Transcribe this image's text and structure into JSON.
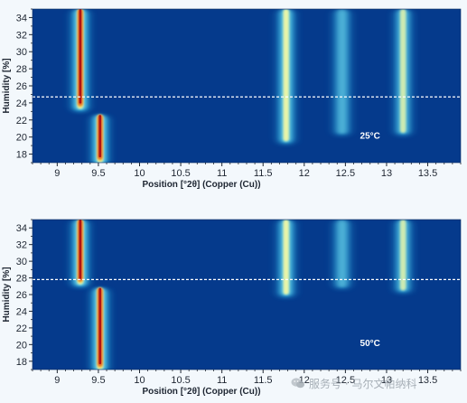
{
  "colors": {
    "background": "#053a8c",
    "colormap": [
      "#0a2f86",
      "#1466c8",
      "#2bb3e6",
      "#7ee3f0",
      "#e8f5a8",
      "#f5b43a",
      "#e0551c",
      "#b01414"
    ],
    "threshold_line": "#ffffff"
  },
  "watermark": {
    "text": "服务号 · 马尔文帕纳科",
    "icon": "wechat-icon"
  },
  "chart_data": [
    {
      "type": "heatmap",
      "annotation": "25°C",
      "xlabel": "Position [°2θ] (Copper (Cu))",
      "ylabel": "Humidity [%]",
      "xlim": [
        8.7,
        13.9
      ],
      "ylim": [
        17,
        35
      ],
      "x_ticks": [
        "9",
        "9.5",
        "10",
        "10.5",
        "11",
        "11.5",
        "12",
        "12.5",
        "13",
        "13.5"
      ],
      "y_ticks": [
        "18",
        "20",
        "22",
        "24",
        "26",
        "28",
        "30",
        "32",
        "34"
      ],
      "threshold_humidity": 24.7,
      "peaks": [
        {
          "position": 9.28,
          "humidity_from": 23.3,
          "humidity_to": 35,
          "intensity": 1.0
        },
        {
          "position": 9.52,
          "humidity_from": 17,
          "humidity_to": 22.6,
          "intensity": 1.0
        },
        {
          "position": 11.78,
          "humidity_from": 19.5,
          "humidity_to": 35,
          "intensity": 0.72
        },
        {
          "position": 12.46,
          "humidity_from": 20.5,
          "humidity_to": 35,
          "intensity": 0.32
        },
        {
          "position": 13.2,
          "humidity_from": 20.5,
          "humidity_to": 35,
          "intensity": 0.52
        }
      ]
    },
    {
      "type": "heatmap",
      "annotation": "50°C",
      "xlabel": "Position [°2θ] (Copper (Cu))",
      "ylabel": "Humidity [%]",
      "xlim": [
        8.7,
        13.9
      ],
      "ylim": [
        17,
        35
      ],
      "x_ticks": [
        "9",
        "9.5",
        "10",
        "10.5",
        "11",
        "11.5",
        "12",
        "12.5",
        "13",
        "13.5"
      ],
      "y_ticks": [
        "18",
        "20",
        "22",
        "24",
        "26",
        "28",
        "30",
        "32",
        "34"
      ],
      "threshold_humidity": 27.8,
      "peaks": [
        {
          "position": 9.28,
          "humidity_from": 27.2,
          "humidity_to": 35,
          "intensity": 1.0
        },
        {
          "position": 9.52,
          "humidity_from": 17,
          "humidity_to": 26.8,
          "intensity": 1.0
        },
        {
          "position": 11.78,
          "humidity_from": 26.0,
          "humidity_to": 35,
          "intensity": 0.72
        },
        {
          "position": 12.46,
          "humidity_from": 27.0,
          "humidity_to": 35,
          "intensity": 0.32
        },
        {
          "position": 13.2,
          "humidity_from": 26.5,
          "humidity_to": 35,
          "intensity": 0.52
        }
      ]
    }
  ]
}
